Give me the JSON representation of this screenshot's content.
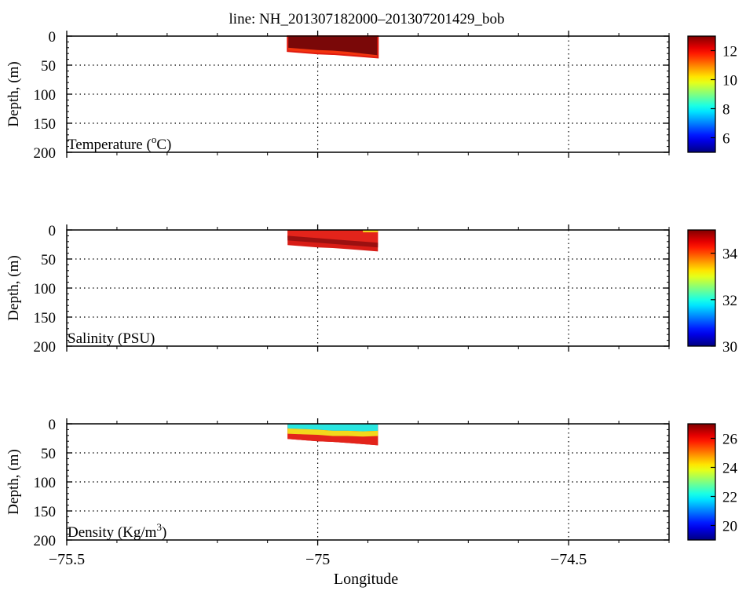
{
  "figure": {
    "title": "line: NH_201307182000–201307201429_bob",
    "xlabel": "Longitude"
  },
  "chart_data": [
    {
      "type": "heatmap",
      "panel_label": "Temperature (",
      "panel_label_sup": "o",
      "panel_label_tail": "C)",
      "ylabel": "Depth, (m)",
      "xlim": [
        -75.5,
        -74.3
      ],
      "ylim": [
        200,
        0
      ],
      "x_ticks": [
        -75.5,
        -75,
        -74.5
      ],
      "x_tick_labels": [
        "",
        "",
        ""
      ],
      "y_ticks": [
        0,
        50,
        100,
        150,
        200
      ],
      "y_tick_labels": [
        "0",
        "50",
        "100",
        "150",
        "200"
      ],
      "grid": true,
      "colorbar": {
        "min": 5,
        "max": 13,
        "ticks": [
          6,
          8,
          10,
          12
        ],
        "tick_labels": [
          "6",
          "8",
          "10",
          "12"
        ]
      },
      "data_extent": {
        "lon": [
          -75.06,
          -74.88
        ],
        "depth_max": 37
      },
      "colors": {
        "surface": "#7a0808",
        "deep": "#e01b10",
        "edge": "#f2340f"
      },
      "profile_bottom": [
        [
          -75.06,
          26
        ],
        [
          -75.03,
          28
        ],
        [
          -75.0,
          30
        ],
        [
          -74.97,
          31
        ],
        [
          -74.94,
          33
        ],
        [
          -74.91,
          35
        ],
        [
          -74.88,
          37
        ]
      ],
      "layer_depth": [
        [
          -75.06,
          20
        ],
        [
          -75.03,
          22
        ],
        [
          -75.0,
          24
        ],
        [
          -74.97,
          25
        ],
        [
          -74.94,
          27
        ],
        [
          -74.91,
          30
        ],
        [
          -74.88,
          33
        ]
      ]
    },
    {
      "type": "heatmap",
      "panel_label": "Salinity (PSU)",
      "panel_label_sup": "",
      "panel_label_tail": "",
      "ylabel": "Depth, (m)",
      "xlim": [
        -75.5,
        -74.3
      ],
      "ylim": [
        200,
        0
      ],
      "x_ticks": [
        -75.5,
        -75,
        -74.5
      ],
      "x_tick_labels": [
        "",
        "",
        ""
      ],
      "y_ticks": [
        0,
        50,
        100,
        150,
        200
      ],
      "y_tick_labels": [
        "0",
        "50",
        "100",
        "150",
        "200"
      ],
      "grid": true,
      "colorbar": {
        "min": 30,
        "max": 35,
        "ticks": [
          30,
          32,
          34
        ],
        "tick_labels": [
          "30",
          "32",
          "34"
        ]
      },
      "data_extent": {
        "lon": [
          -75.06,
          -74.88
        ],
        "depth_max": 37
      },
      "colors": {
        "surface": "#e3241b",
        "mid": "#9b1010",
        "deep": "#d81c16",
        "fresh": "#f8d21a"
      },
      "profile_bottom": [
        [
          -75.06,
          26
        ],
        [
          -75.03,
          28
        ],
        [
          -75.0,
          30
        ],
        [
          -74.97,
          31
        ],
        [
          -74.94,
          33
        ],
        [
          -74.91,
          35
        ],
        [
          -74.88,
          37
        ]
      ],
      "layer_depth": [
        [
          -75.06,
          14
        ],
        [
          -75.03,
          16
        ],
        [
          -75.0,
          18
        ],
        [
          -74.97,
          20
        ],
        [
          -74.94,
          22
        ],
        [
          -74.91,
          24
        ],
        [
          -74.88,
          26
        ]
      ]
    },
    {
      "type": "heatmap",
      "panel_label": "Density (Kg/m",
      "panel_label_sup": "3",
      "panel_label_tail": ")",
      "ylabel": "Depth, (m)",
      "xlim": [
        -75.5,
        -74.3
      ],
      "ylim": [
        200,
        0
      ],
      "x_ticks": [
        -75.5,
        -75,
        -74.5
      ],
      "x_tick_labels": [
        "−75.5",
        "−75",
        "−74.5"
      ],
      "y_ticks": [
        0,
        50,
        100,
        150,
        200
      ],
      "y_tick_labels": [
        "0",
        "50",
        "100",
        "150",
        "200"
      ],
      "grid": true,
      "colorbar": {
        "min": 19,
        "max": 27,
        "ticks": [
          20,
          22,
          24,
          26
        ],
        "tick_labels": [
          "20",
          "22",
          "24",
          "26"
        ]
      },
      "data_extent": {
        "lon": [
          -75.06,
          -74.88
        ],
        "depth_max": 37
      },
      "colors": {
        "surface": "#29e6e0",
        "mid": "#f3d81c",
        "deep": "#e3241b",
        "bottom": "#cc1414"
      },
      "profile_bottom": [
        [
          -75.06,
          26
        ],
        [
          -75.03,
          28
        ],
        [
          -75.0,
          30
        ],
        [
          -74.97,
          31
        ],
        [
          -74.94,
          33
        ],
        [
          -74.91,
          35
        ],
        [
          -74.88,
          37
        ]
      ],
      "layer_depth": [
        [
          -75.06,
          8
        ],
        [
          -75.03,
          9
        ],
        [
          -75.0,
          10
        ],
        [
          -74.97,
          12
        ],
        [
          -74.94,
          12
        ],
        [
          -74.91,
          13
        ],
        [
          -74.88,
          12
        ]
      ]
    }
  ]
}
